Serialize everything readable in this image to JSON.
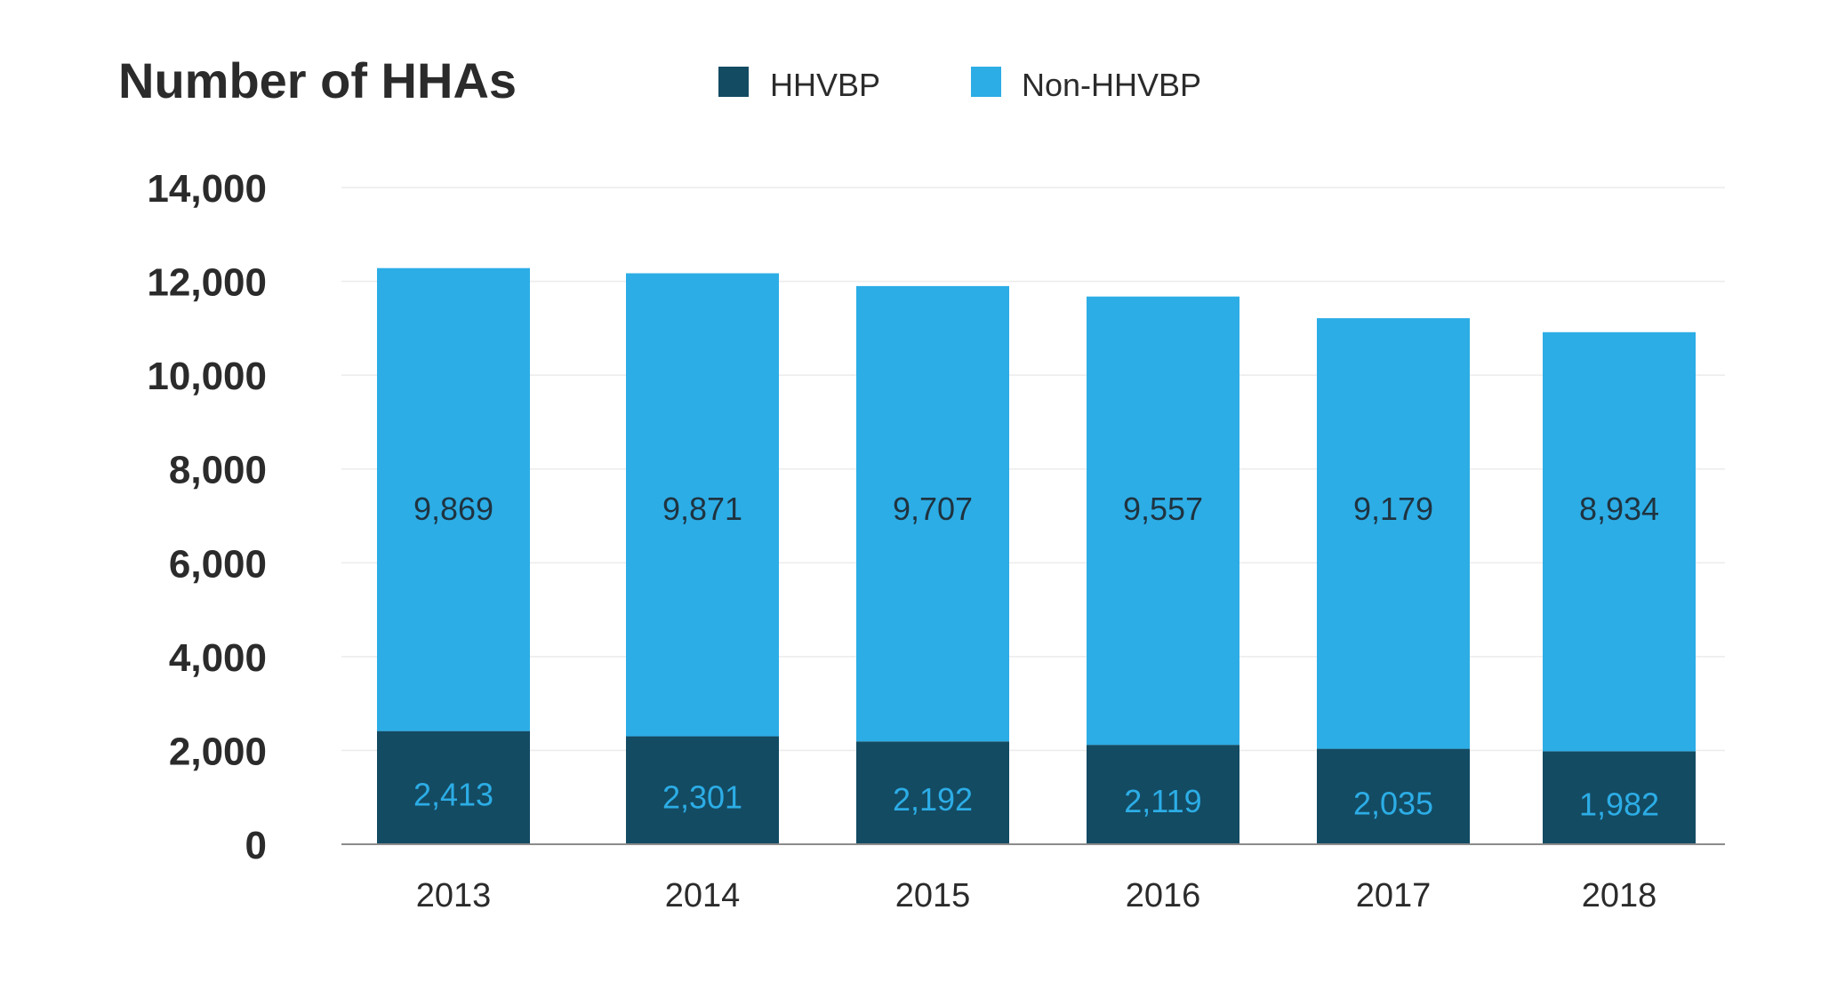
{
  "chart_data": {
    "type": "bar",
    "stacked": true,
    "title": "Number of HHAs",
    "categories": [
      "2013",
      "2014",
      "2015",
      "2016",
      "2017",
      "2018"
    ],
    "series": [
      {
        "name": "HHVBP",
        "color": "#134b63",
        "label_color": "#2cade6",
        "values": [
          2413,
          2301,
          2192,
          2119,
          2035,
          1982
        ],
        "labels": [
          "2,413",
          "2,301",
          "2,192",
          "2,119",
          "2,035",
          "1,982"
        ]
      },
      {
        "name": "Non-HHVBP",
        "color": "#2cade6",
        "label_color": "#1f3340",
        "values": [
          9869,
          9871,
          9707,
          9557,
          9179,
          8934
        ],
        "labels": [
          "9,869",
          "9,871",
          "9,707",
          "9,557",
          "9,179",
          "8,934"
        ]
      }
    ],
    "y_ticks": [
      0,
      2000,
      4000,
      6000,
      8000,
      10000,
      12000,
      14000
    ],
    "y_tick_labels": [
      "0",
      "2,000",
      "4,000",
      "6,000",
      "8,000",
      "10,000",
      "12,000",
      "14,000"
    ],
    "ylim": [
      0,
      14000
    ],
    "grid": true,
    "legend_position": "top"
  }
}
